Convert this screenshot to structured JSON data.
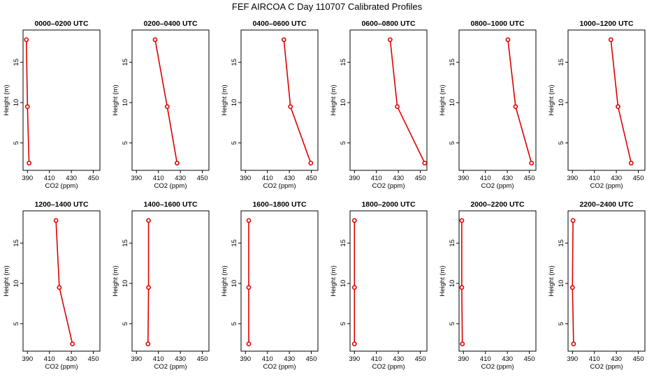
{
  "figure_title": "FEF AIRCOA C  Day 110707  Calibrated Profiles",
  "chart_data": {
    "type": "line",
    "title": "FEF AIRCOA C  Day 110707  Calibrated Profiles",
    "xlabel": "CO2 (ppm)",
    "ylabel": "Height (m)",
    "xlim": [
      386,
      456
    ],
    "ylim": [
      1.6,
      19.0
    ],
    "xticks": [
      390,
      410,
      430,
      450
    ],
    "yticks": [
      5,
      10,
      15
    ],
    "panels": [
      {
        "title": "0000–0200 UTC",
        "heights": [
          17.8,
          9.5,
          2.5
        ],
        "co2": [
          389.0,
          390.0,
          391.5
        ]
      },
      {
        "title": "0200–0400 UTC",
        "heights": [
          17.8,
          9.5,
          2.5
        ],
        "co2": [
          407.0,
          418.0,
          427.0
        ]
      },
      {
        "title": "0400–0600 UTC",
        "heights": [
          17.8,
          9.5,
          2.5
        ],
        "co2": [
          425.0,
          431.0,
          449.5
        ]
      },
      {
        "title": "0600–0800 UTC",
        "heights": [
          17.8,
          9.5,
          2.5
        ],
        "co2": [
          422.5,
          429.0,
          454.0
        ]
      },
      {
        "title": "0800–1000 UTC",
        "heights": [
          17.8,
          9.5,
          2.5
        ],
        "co2": [
          430.5,
          437.5,
          452.0
        ]
      },
      {
        "title": "1000–1200 UTC",
        "heights": [
          17.8,
          9.5,
          2.5
        ],
        "co2": [
          425.0,
          431.5,
          443.5
        ]
      },
      {
        "title": "1200–1400 UTC",
        "heights": [
          17.8,
          9.5,
          2.5
        ],
        "co2": [
          416.0,
          419.0,
          431.0
        ]
      },
      {
        "title": "1400–1600 UTC",
        "heights": [
          17.8,
          9.5,
          2.5
        ],
        "co2": [
          401.0,
          401.0,
          400.5
        ]
      },
      {
        "title": "1600–1800 UTC",
        "heights": [
          17.8,
          9.5,
          2.5
        ],
        "co2": [
          393.0,
          393.0,
          393.0
        ]
      },
      {
        "title": "1800–2000 UTC",
        "heights": [
          17.8,
          9.5,
          2.5
        ],
        "co2": [
          390.0,
          390.0,
          390.0
        ]
      },
      {
        "title": "2000–2200 UTC",
        "heights": [
          17.8,
          9.5,
          2.5
        ],
        "co2": [
          388.5,
          388.5,
          389.0
        ]
      },
      {
        "title": "2200–2400 UTC",
        "heights": [
          17.8,
          9.5,
          2.5
        ],
        "co2": [
          390.5,
          390.0,
          391.0
        ]
      }
    ]
  }
}
